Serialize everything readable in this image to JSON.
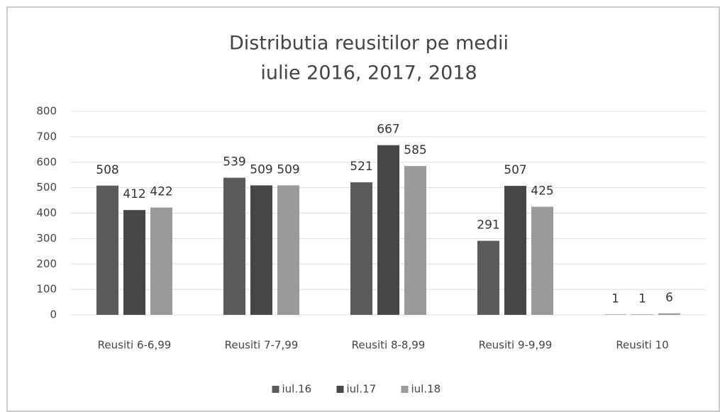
{
  "chart_data": {
    "type": "bar",
    "title": "Distributia reusitilor pe medii",
    "subtitle": "iulie 2016, 2017, 2018",
    "categories": [
      "Reusiti 6-6,99",
      "Reusiti 7-7,99",
      "Reusiti 8-8,99",
      "Reusiti 9-9,99",
      "Reusiti 10"
    ],
    "series": [
      {
        "name": "iul.16",
        "color": "#5a5a5a",
        "values": [
          508,
          539,
          521,
          291,
          1
        ]
      },
      {
        "name": "iul.17",
        "color": "#464646",
        "values": [
          412,
          509,
          667,
          507,
          1
        ]
      },
      {
        "name": "iul.18",
        "color": "#9a9a9a",
        "values": [
          422,
          509,
          585,
          425,
          6
        ]
      }
    ],
    "ylim": [
      0,
      800
    ],
    "yticks": [
      0,
      100,
      200,
      300,
      400,
      500,
      600,
      700,
      800
    ],
    "grid": true,
    "legend": "bottom"
  }
}
